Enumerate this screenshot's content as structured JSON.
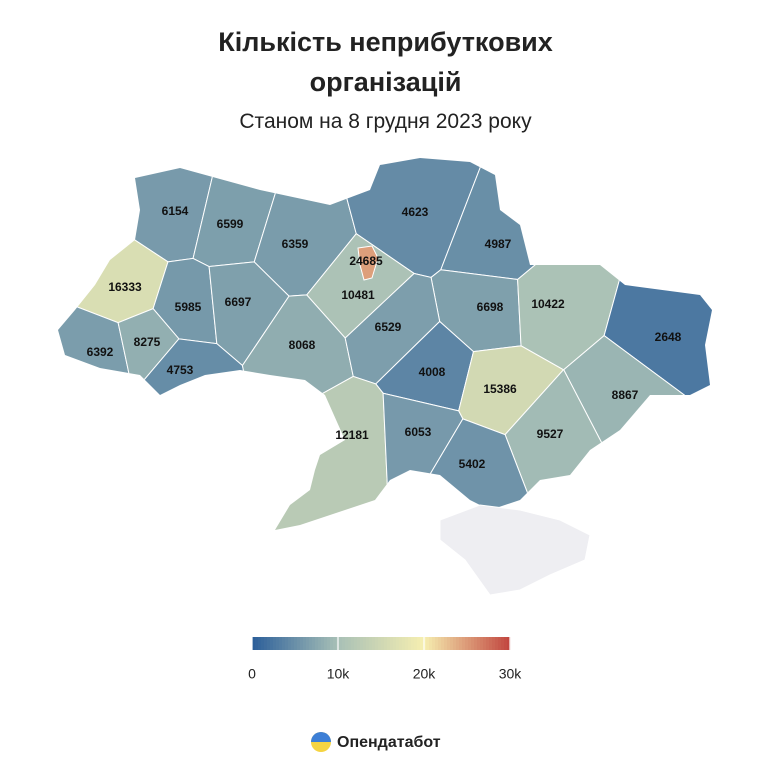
{
  "chart_data": {
    "type": "choropleth",
    "title": "Кількість неприбуткових організацій",
    "subtitle": "Станом на 8 грудня 2023 року",
    "values": [
      6154,
      6599,
      6359,
      4623,
      4987,
      16333,
      5985,
      6697,
      24685,
      10481,
      6698,
      10422,
      2648,
      6392,
      8275,
      4753,
      8068,
      6529,
      4008,
      15386,
      8867,
      12181,
      6053,
      9527,
      5402
    ],
    "colorlim": [
      0,
      30000
    ],
    "colorticks": [
      0,
      {
        "value": 10000,
        "label": "10k"
      },
      {
        "value": 20000,
        "label": "20k"
      },
      {
        "value": 30000,
        "label": "30k"
      }
    ],
    "colors": [
      "#2b5e99",
      "#a8c0b6",
      "#f6efb1",
      "#c1443e"
    ],
    "no_data_color": "#eeeef2"
  },
  "footer": {
    "brand": "Опендатабот"
  }
}
